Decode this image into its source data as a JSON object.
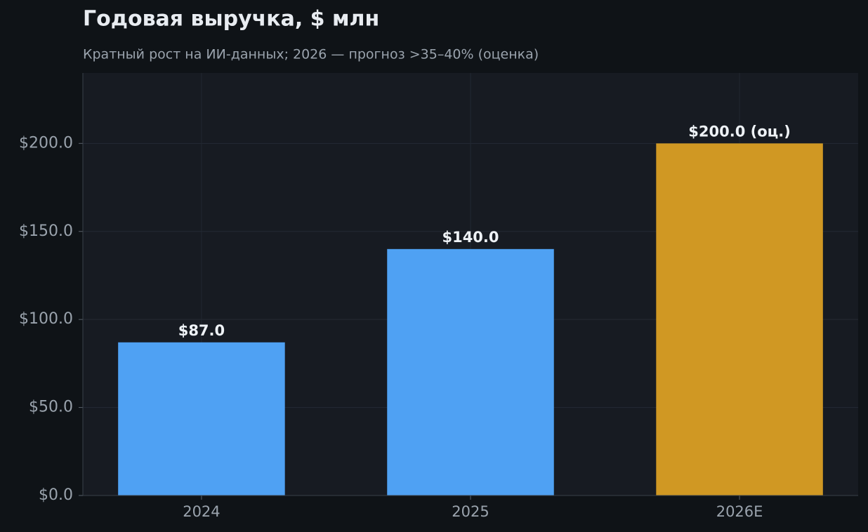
{
  "chart_data": {
    "type": "bar",
    "title": "Годовая выручка, $ млн",
    "subtitle": "Кратный рост на ИИ-данных; 2026 — прогноз >35–40% (оценка)",
    "categories": [
      "2024",
      "2025",
      "2026E"
    ],
    "values": [
      87,
      140,
      200
    ],
    "value_labels": [
      "$87.0",
      "$140.0",
      "$200.0 (оц.)"
    ],
    "colors": [
      "#4fa1f3",
      "#4fa1f3",
      "#d09823"
    ],
    "ylim": [
      0,
      240
    ],
    "yticks": [
      {
        "value": 0,
        "label": "$0.0"
      },
      {
        "value": 50,
        "label": "$50.0"
      },
      {
        "value": 100,
        "label": "$100.0"
      },
      {
        "value": 150,
        "label": "$150.0"
      },
      {
        "value": 200,
        "label": "$200.0"
      }
    ],
    "grid": true
  }
}
